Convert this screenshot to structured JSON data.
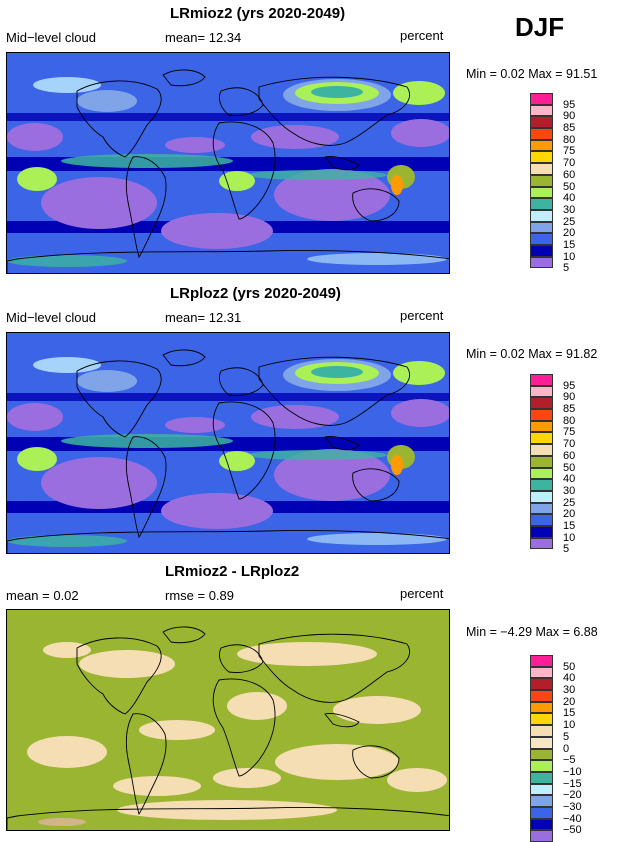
{
  "season": "DJF",
  "panels": [
    {
      "title": "LRmioz2 (yrs 2020-2049)",
      "left_label": "Mid−level cloud",
      "center_label": "mean=  12.34",
      "units": "percent",
      "min_max": "Min =    0.02  Max =   91.51",
      "legend": {
        "labels": [
          "95",
          "90",
          "85",
          "80",
          "75",
          "70",
          "60",
          "50",
          "40",
          "30",
          "25",
          "20",
          "15",
          "10",
          "5"
        ],
        "colors": [
          "#ff1e96",
          "#ffb4c8",
          "#b21e2a",
          "#ff4612",
          "#ff9a00",
          "#ffd700",
          "#f5deb3",
          "#9ab532",
          "#aaf056",
          "#3cb4a0",
          "#bfefff",
          "#7fa5e8",
          "#3c64e6",
          "#0000b4",
          "#9b6ee0"
        ]
      },
      "map_style": "cloud"
    },
    {
      "title": "LRploz2 (yrs 2020-2049)",
      "left_label": "Mid−level cloud",
      "center_label": "mean=  12.31",
      "units": "percent",
      "min_max": "Min =    0.02  Max =   91.82",
      "legend": {
        "labels": [
          "95",
          "90",
          "85",
          "80",
          "75",
          "70",
          "60",
          "50",
          "40",
          "30",
          "25",
          "20",
          "15",
          "10",
          "5"
        ],
        "colors": [
          "#ff1e96",
          "#ffb4c8",
          "#b21e2a",
          "#ff4612",
          "#ff9a00",
          "#ffd700",
          "#f5deb3",
          "#9ab532",
          "#aaf056",
          "#3cb4a0",
          "#bfefff",
          "#7fa5e8",
          "#3c64e6",
          "#0000b4",
          "#9b6ee0"
        ]
      },
      "map_style": "cloud"
    },
    {
      "title": "LRmioz2 - LRploz2",
      "left_label": "mean =   0.02",
      "center_label": "rmse =   0.89",
      "units": "percent",
      "min_max": "Min =  −4.29  Max =    6.88",
      "legend": {
        "labels": [
          "50",
          "40",
          "30",
          "20",
          "15",
          "10",
          "5",
          "0",
          "−5",
          "−10",
          "−15",
          "−20",
          "−30",
          "−40",
          "−50"
        ],
        "colors": [
          "#ff1e96",
          "#ffb4c8",
          "#b21e2a",
          "#ff4612",
          "#ff9a00",
          "#ffd700",
          "#f5deb3",
          "#f5e6c4",
          "#9ab532",
          "#aaf056",
          "#3cb4a0",
          "#bfefff",
          "#7fa5e8",
          "#3c64e6",
          "#0000b4",
          "#9b6ee0"
        ]
      },
      "map_style": "diff"
    }
  ]
}
